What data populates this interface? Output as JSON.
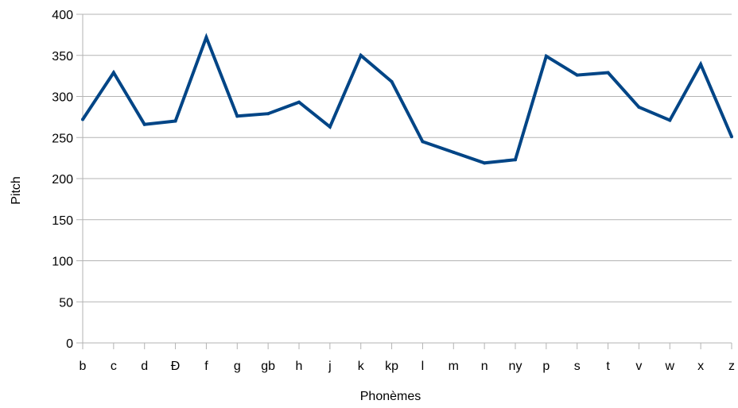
{
  "chart_data": {
    "type": "line",
    "title": "",
    "xlabel": "Phonèmes",
    "ylabel": "Pitch",
    "ylim": [
      0,
      400
    ],
    "yticks": [
      0,
      50,
      100,
      150,
      200,
      250,
      300,
      350,
      400
    ],
    "grid": true,
    "legend": "none",
    "categories": [
      "b",
      "c",
      "d",
      "Ð",
      "f",
      "g",
      "gb",
      "h",
      "j",
      "k",
      "kp",
      "l",
      "m",
      "n",
      "ny",
      "p",
      "s",
      "t",
      "v",
      "w",
      "x",
      "z"
    ],
    "series": [
      {
        "color": "#004586",
        "values": [
          272,
          329,
          266,
          270,
          372,
          276,
          279,
          293,
          263,
          350,
          318,
          245,
          232,
          219,
          223,
          349,
          326,
          329,
          287,
          271,
          339,
          251
        ]
      }
    ]
  }
}
